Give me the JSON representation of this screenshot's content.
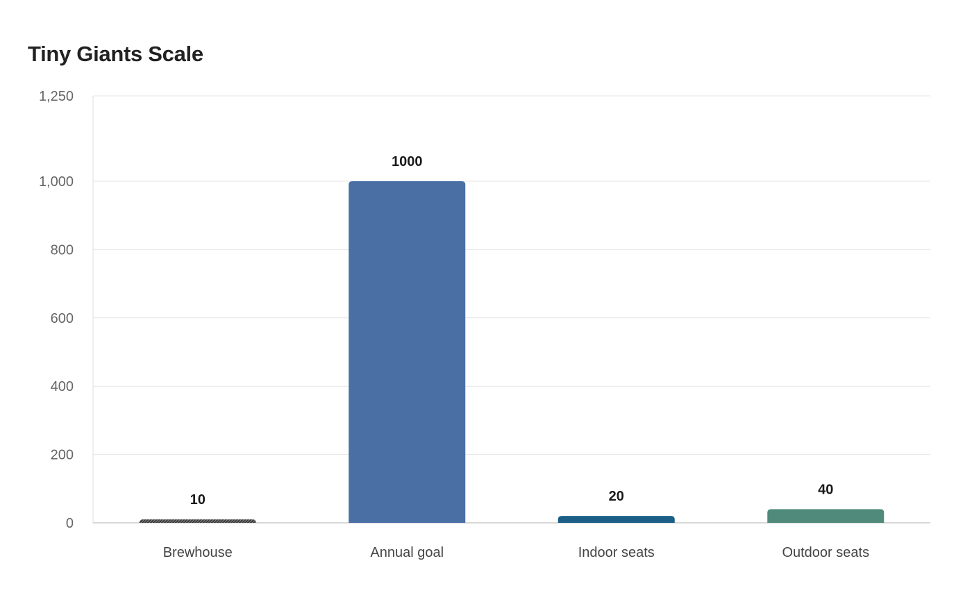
{
  "chart_data": {
    "type": "bar",
    "title": "Tiny Giants Scale",
    "xlabel": "",
    "ylabel": "",
    "categories": [
      "Brewhouse",
      "Annual goal",
      "Indoor seats",
      "Outdoor seats"
    ],
    "values": [
      10,
      1000,
      20,
      40
    ],
    "colors": [
      "#3a3a3a",
      "#4a6fa5",
      "#1b5e86",
      "#4f8a7a"
    ],
    "ylim": [
      0,
      1250
    ],
    "yticks": [
      0,
      200,
      400,
      600,
      800,
      1000,
      1250
    ],
    "ytick_labels": [
      "0",
      "200",
      "400",
      "600",
      "800",
      "1,000",
      "1,250"
    ],
    "grid": true,
    "data_labels": true
  }
}
